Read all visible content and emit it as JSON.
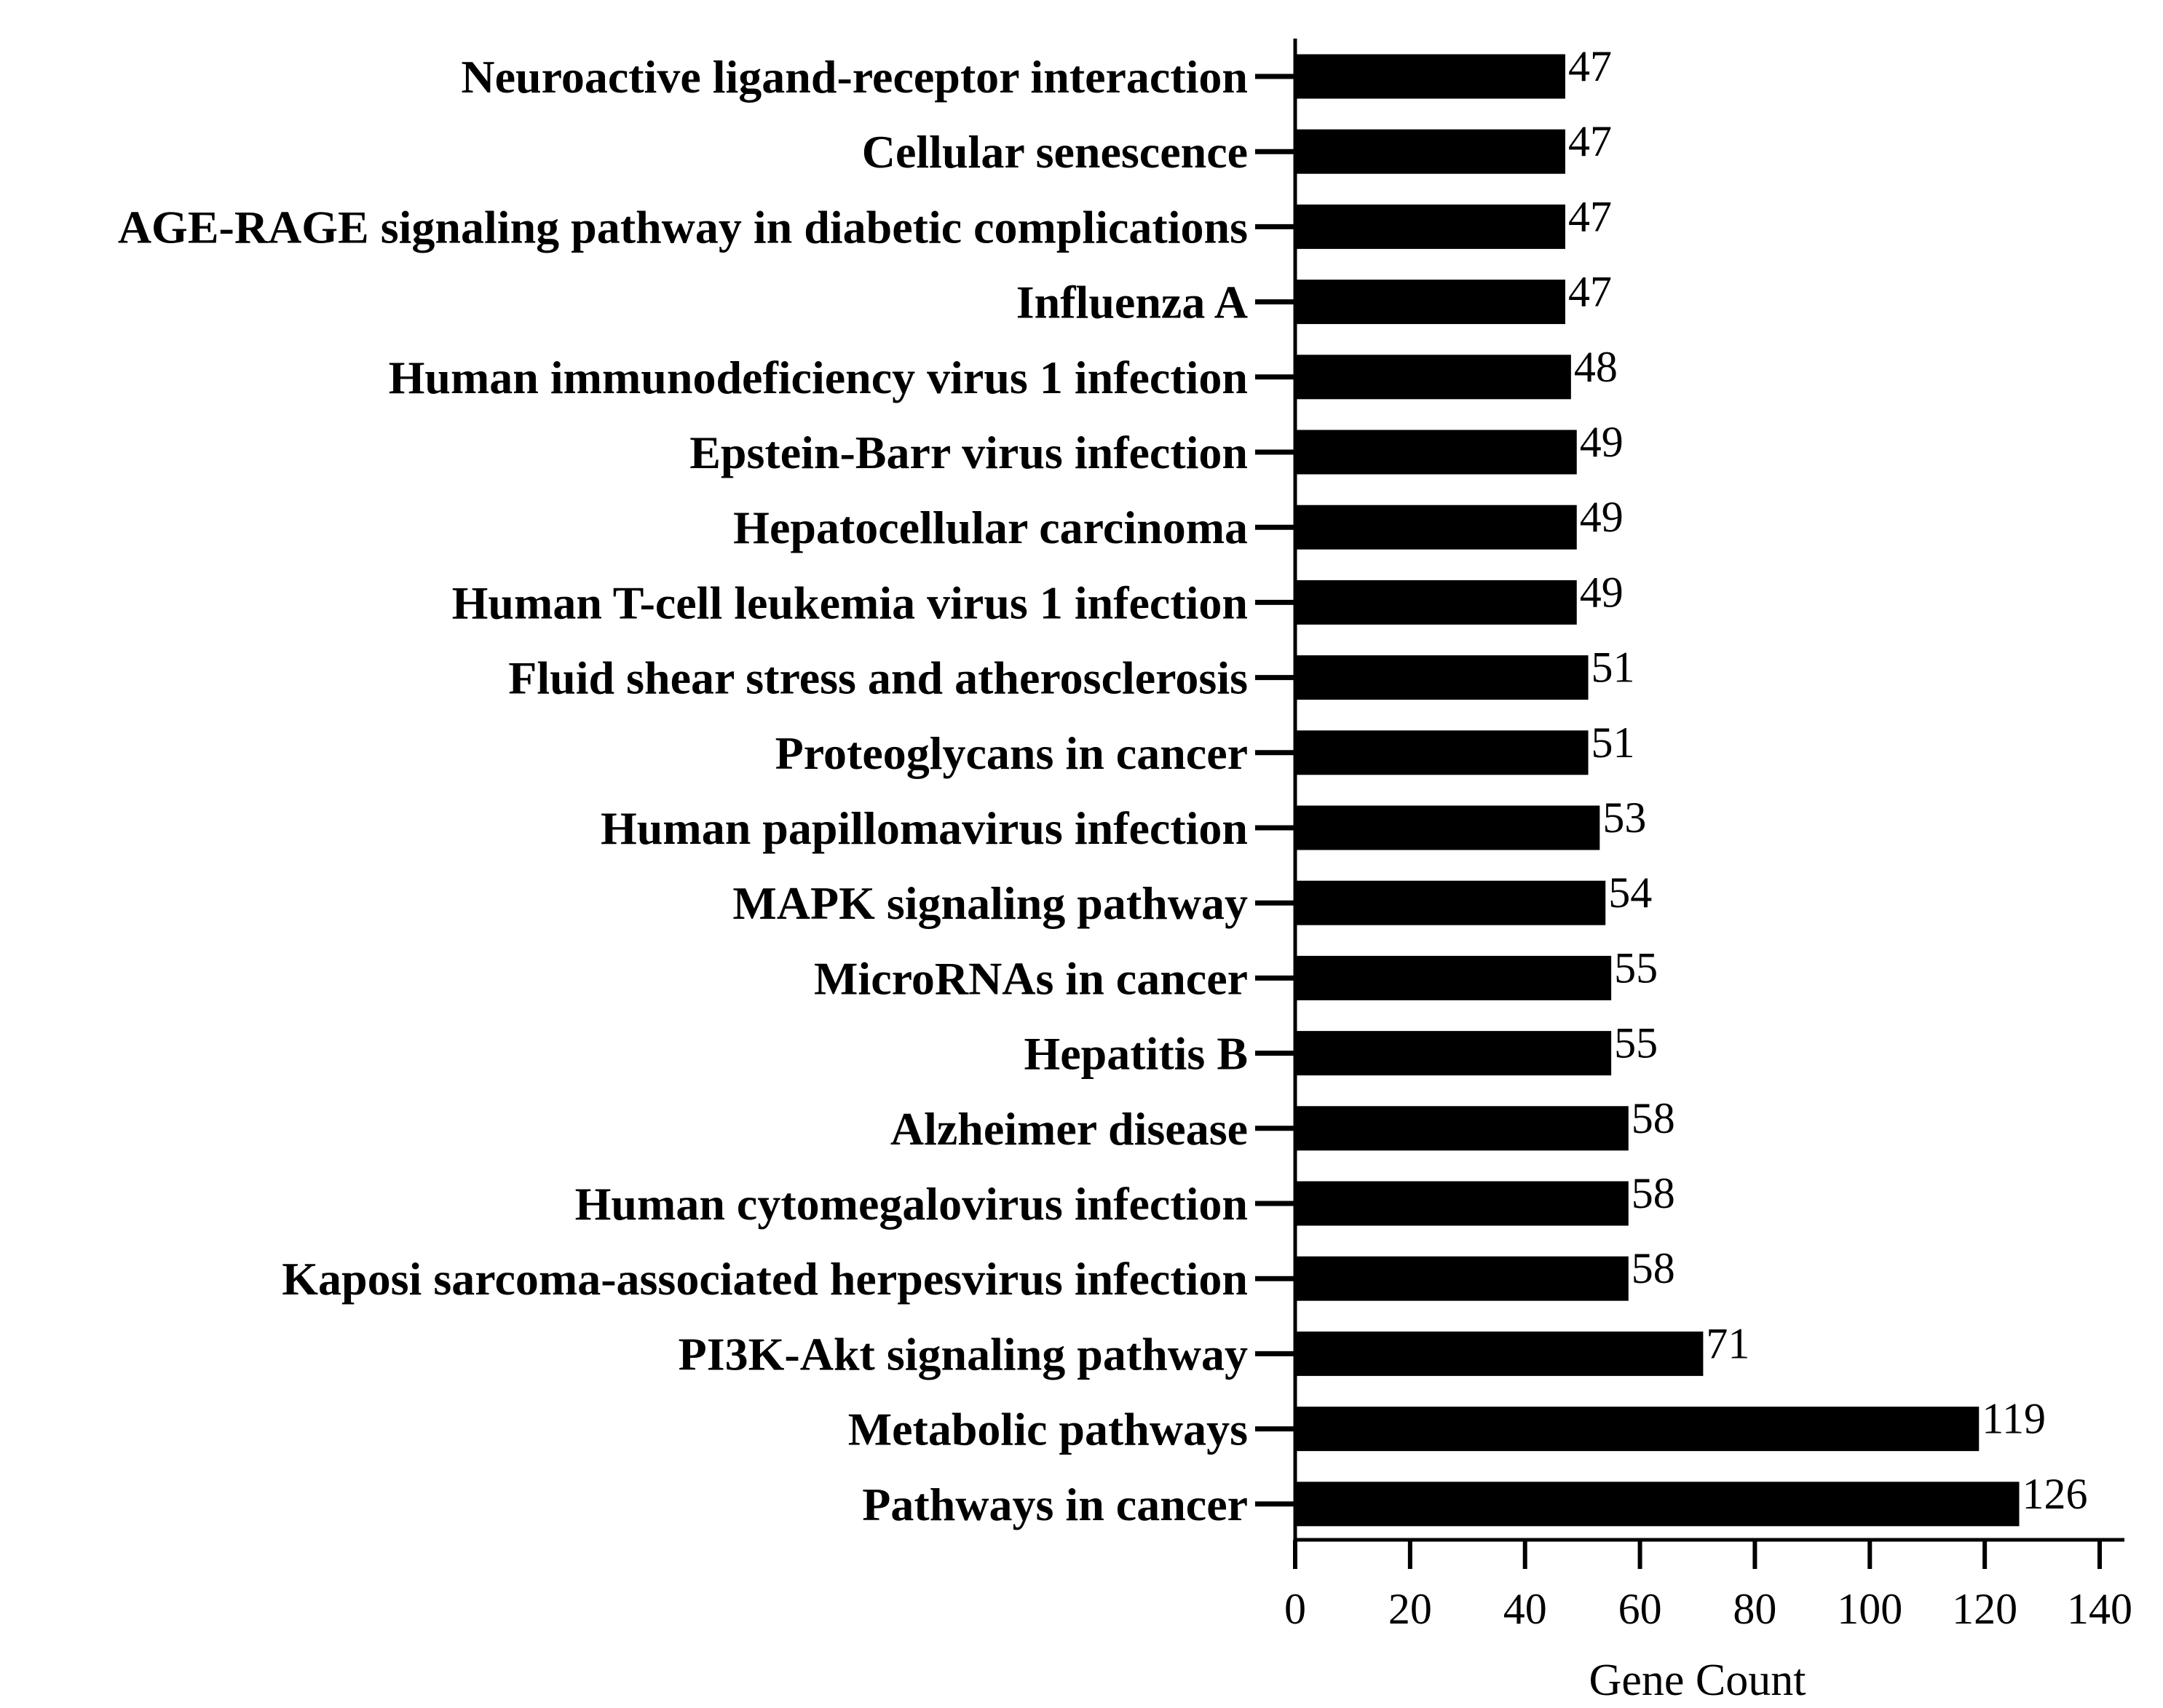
{
  "chart_data": {
    "type": "bar",
    "orientation": "horizontal",
    "categories": [
      "Neuroactive ligand-receptor interaction",
      "Cellular senescence",
      "AGE-RAGE signaling pathway in diabetic complications",
      "Influenza A",
      "Human immunodeficiency virus 1 infection",
      "Epstein-Barr virus infection",
      "Hepatocellular carcinoma",
      "Human T-cell leukemia virus 1 infection",
      "Fluid shear stress and atherosclerosis",
      "Proteoglycans in cancer",
      "Human papillomavirus infection",
      "MAPK signaling pathway",
      "MicroRNAs in cancer",
      "Hepatitis B",
      "Alzheimer disease",
      "Human cytomegalovirus infection",
      "Kaposi sarcoma-associated herpesvirus infection",
      "PI3K-Akt signaling pathway",
      "Metabolic pathways",
      "Pathways in cancer"
    ],
    "values": [
      47,
      47,
      47,
      47,
      48,
      49,
      49,
      49,
      51,
      51,
      53,
      54,
      55,
      55,
      58,
      58,
      58,
      71,
      119,
      126
    ],
    "title": "",
    "xlabel": "Gene Count",
    "ylabel": "",
    "xlim": [
      0,
      140
    ],
    "xticks": [
      "0",
      "20",
      "40",
      "60",
      "80",
      "100",
      "120",
      "140"
    ],
    "grid": false,
    "data_labels": true,
    "bar_color": "#000000"
  }
}
